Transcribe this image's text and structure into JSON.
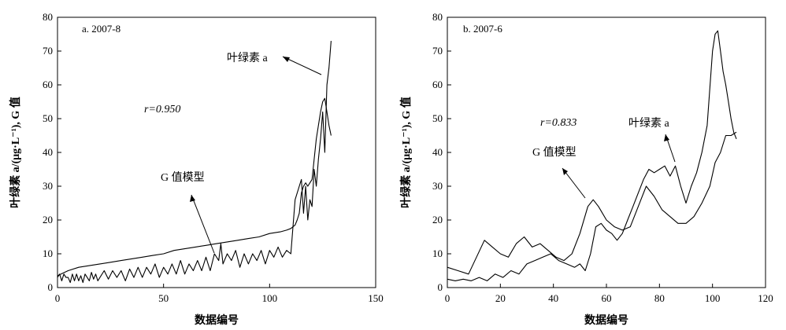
{
  "chart_data": [
    {
      "type": "line",
      "panel_label": "a. 2007-8",
      "xlabel": "数据编号",
      "ylabel": "叶绿素 a/(μg·L⁻¹), G 值",
      "xlim": [
        0,
        150
      ],
      "ylim": [
        0,
        80
      ],
      "xticks": [
        0,
        50,
        100,
        150
      ],
      "yticks": [
        0,
        10,
        20,
        30,
        40,
        50,
        60,
        70,
        80
      ],
      "annotations": [
        {
          "text": "叶绿素 a",
          "target": "chlorophyll"
        },
        {
          "text": "r=0.950",
          "target": "none"
        },
        {
          "text": "G 值模型",
          "target": "gmodel"
        }
      ],
      "series": [
        {
          "key": "chlorophyll",
          "x": [
            0,
            1,
            2,
            3,
            4,
            5,
            6,
            7,
            8,
            9,
            10,
            11,
            12,
            13,
            14,
            15,
            16,
            17,
            18,
            19,
            20,
            22,
            24,
            26,
            28,
            30,
            32,
            34,
            36,
            38,
            40,
            42,
            44,
            46,
            48,
            50,
            52,
            54,
            56,
            58,
            60,
            62,
            64,
            66,
            68,
            70,
            72,
            74,
            76,
            77,
            78,
            80,
            82,
            84,
            86,
            88,
            90,
            92,
            94,
            96,
            98,
            100,
            102,
            104,
            106,
            108,
            110,
            112,
            114,
            115,
            116,
            117,
            118,
            119,
            120,
            121,
            122,
            123,
            124,
            125,
            126,
            127,
            128,
            129
          ],
          "y": [
            3,
            4,
            2,
            4,
            3,
            3,
            1.5,
            4,
            2,
            4,
            2,
            3.5,
            1.5,
            4,
            3,
            2,
            4.5,
            2.5,
            4,
            2,
            3,
            5,
            2.5,
            5,
            3,
            5,
            2,
            5.5,
            3,
            6,
            3,
            6,
            4,
            7,
            3,
            6,
            4,
            7,
            4,
            8,
            4,
            7,
            5,
            8,
            5,
            9,
            5,
            10,
            8,
            13,
            7,
            10,
            8,
            11,
            6,
            10,
            7,
            10,
            8,
            11,
            7,
            11,
            9,
            12,
            9,
            11,
            10,
            26,
            30,
            32,
            22,
            30,
            20,
            26,
            24,
            35,
            30,
            38,
            44,
            52,
            40,
            60,
            65,
            73
          ]
        },
        {
          "key": "gmodel",
          "x": [
            0,
            5,
            10,
            15,
            20,
            25,
            30,
            35,
            40,
            45,
            50,
            55,
            60,
            65,
            70,
            75,
            80,
            85,
            90,
            95,
            100,
            105,
            108,
            110,
            111,
            112,
            113,
            114,
            115,
            116,
            117,
            118,
            119,
            120,
            121,
            122,
            123,
            124,
            125,
            126,
            127,
            128,
            129
          ],
          "y": [
            3.5,
            5,
            6,
            6.5,
            7,
            7.5,
            8,
            8.5,
            9,
            9.5,
            10,
            11,
            11.5,
            12,
            12.5,
            13,
            13.5,
            14,
            14.5,
            15,
            16,
            16.5,
            17,
            17.5,
            18,
            18.5,
            20,
            22,
            28,
            30,
            31,
            30,
            31,
            32,
            38,
            44,
            48,
            52,
            55,
            56,
            52,
            48,
            45
          ]
        }
      ]
    },
    {
      "type": "line",
      "panel_label": "b. 2007-6",
      "xlabel": "数据编号",
      "ylabel": "叶绿素 a/(μg·L⁻¹), G 值",
      "xlim": [
        0,
        120
      ],
      "ylim": [
        0,
        80
      ],
      "xticks": [
        0,
        20,
        40,
        60,
        80,
        100,
        120
      ],
      "yticks": [
        0,
        10,
        20,
        30,
        40,
        50,
        60,
        70,
        80
      ],
      "annotations": [
        {
          "text": "r=0.833",
          "target": "none"
        },
        {
          "text": "叶绿素 a",
          "target": "chlorophyll"
        },
        {
          "text": "G 值模型",
          "target": "gmodel"
        }
      ],
      "series": [
        {
          "key": "gmodel",
          "x": [
            0,
            4,
            8,
            11,
            14,
            17,
            20,
            23,
            26,
            29,
            32,
            35,
            38,
            41,
            44,
            47,
            50,
            53,
            55,
            57,
            60,
            63,
            66,
            69,
            72,
            75,
            78,
            81,
            84,
            87,
            90,
            93,
            96,
            99,
            101,
            103,
            105,
            107,
            109
          ],
          "y": [
            6,
            5,
            4,
            9,
            14,
            12,
            10,
            9,
            13,
            15,
            12,
            13,
            11,
            9,
            8,
            10,
            16,
            24,
            26,
            24,
            20,
            18,
            17,
            18,
            24,
            30,
            27,
            23,
            21,
            19,
            19,
            21,
            25,
            30,
            37,
            40,
            45,
            45,
            46
          ]
        },
        {
          "key": "chlorophyll",
          "x": [
            0,
            3,
            6,
            9,
            12,
            15,
            18,
            21,
            24,
            27,
            30,
            33,
            36,
            39,
            42,
            45,
            48,
            50,
            52,
            54,
            56,
            58,
            60,
            62,
            64,
            66,
            68,
            70,
            72,
            74,
            76,
            78,
            80,
            82,
            84,
            86,
            88,
            90,
            92,
            94,
            96,
            98,
            100,
            101,
            102,
            103,
            104,
            105,
            106,
            107,
            108,
            109
          ],
          "y": [
            2.5,
            2,
            2.5,
            2,
            3,
            2,
            4,
            3,
            5,
            4,
            7,
            8,
            9,
            10,
            8,
            7,
            6,
            7,
            5,
            10,
            18,
            19,
            17,
            16,
            14,
            16,
            20,
            24,
            28,
            32,
            35,
            34,
            35,
            36,
            33,
            36,
            30,
            25,
            30,
            34,
            40,
            48,
            70,
            75,
            76,
            70,
            64,
            60,
            55,
            50,
            46,
            44
          ]
        }
      ]
    }
  ]
}
